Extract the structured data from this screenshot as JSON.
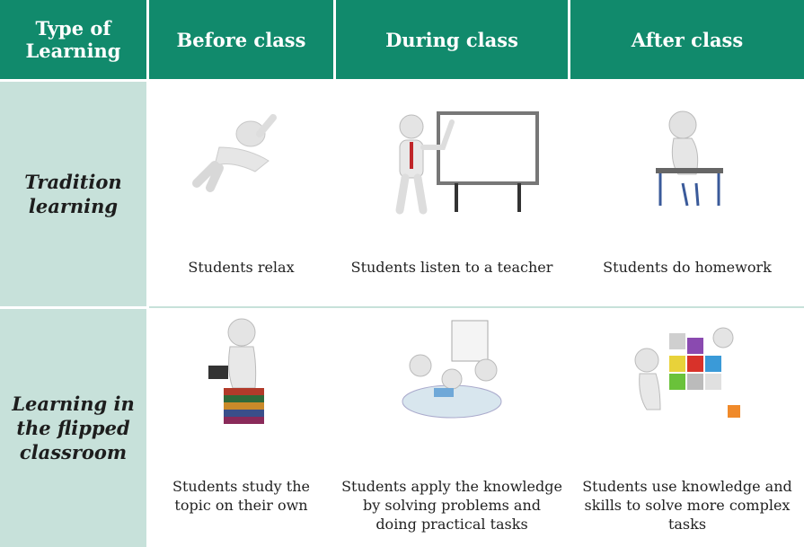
{
  "table": {
    "header": [
      "Type of Learning",
      "Before class",
      "During class",
      "After class"
    ],
    "rows": [
      {
        "label": "Tradition learning",
        "cells": [
          "Students relax",
          "Students listen to a teacher",
          "Students do homework"
        ]
      },
      {
        "label": "Learning in the flipped classroom",
        "cells": [
          "Students study the topic on their own",
          "Students apply the knowledge by solving problems and doing practical tasks",
          "Students use knowledge and skills to solve more complex tasks"
        ]
      }
    ]
  }
}
